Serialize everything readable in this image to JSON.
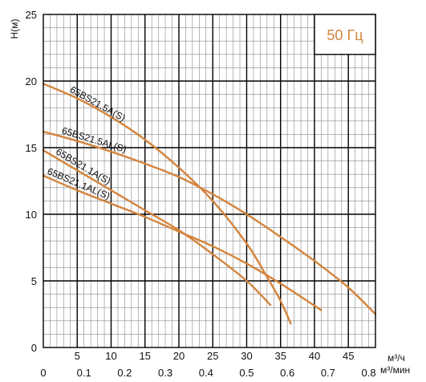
{
  "chart_data": {
    "type": "line",
    "title": "",
    "ylabel": "H(м)",
    "xlabel_primary": "м³/ч",
    "xlabel_secondary": "м³/мин",
    "xlim": [
      0,
      49
    ],
    "ylim": [
      0,
      25
    ],
    "x_ticks_primary": [
      "5",
      "10",
      "15",
      "20",
      "25",
      "30",
      "35",
      "40",
      "45"
    ],
    "x_ticks_primary_values": [
      5,
      10,
      15,
      20,
      25,
      30,
      35,
      40,
      45
    ],
    "x_ticks_secondary": [
      "0",
      "0.1",
      "0.2",
      "0.3",
      "0.4",
      "0.5",
      "0.6",
      "0.7",
      "0.8"
    ],
    "x_ticks_secondary_values": [
      0,
      0.1,
      0.2,
      0.3,
      0.4,
      0.5,
      0.6,
      0.7,
      0.8
    ],
    "x_secondary_factor": 60,
    "y_ticks": [
      "0",
      "5",
      "10",
      "15",
      "20",
      "25"
    ],
    "y_ticks_values": [
      0,
      5,
      10,
      15,
      20,
      25
    ],
    "grid": true,
    "frequency_badge": "50 Гц",
    "colors": {
      "curve": "#d4843c",
      "badge_text": "#d4843c",
      "grid": "#888888",
      "major_grid": "#000000"
    },
    "series": [
      {
        "name": "65BS21.5A(S)",
        "x": [
          0,
          5,
          10,
          15,
          20,
          25,
          30,
          33,
          35,
          36.5
        ],
        "y": [
          19.8,
          18.7,
          17.3,
          15.6,
          13.5,
          11.0,
          7.8,
          5.3,
          3.5,
          1.8
        ]
      },
      {
        "name": "65BS21.5AL(S)",
        "x": [
          0,
          5,
          10,
          15,
          20,
          25,
          30,
          35,
          40,
          45,
          49
        ],
        "y": [
          16.2,
          15.5,
          14.7,
          13.8,
          12.8,
          11.5,
          10.0,
          8.3,
          6.5,
          4.5,
          2.5
        ]
      },
      {
        "name": "65BS21.1A(S)",
        "x": [
          0,
          5,
          10,
          15,
          20,
          25,
          30,
          33.5
        ],
        "y": [
          14.8,
          13.3,
          11.8,
          10.3,
          8.8,
          7.0,
          5.0,
          3.2
        ]
      },
      {
        "name": "65BS21.1AL(S)",
        "x": [
          0,
          5,
          10,
          15,
          20,
          25,
          30,
          35,
          41
        ],
        "y": [
          12.9,
          11.8,
          10.8,
          9.8,
          8.7,
          7.6,
          6.3,
          4.8,
          2.8
        ]
      }
    ]
  }
}
